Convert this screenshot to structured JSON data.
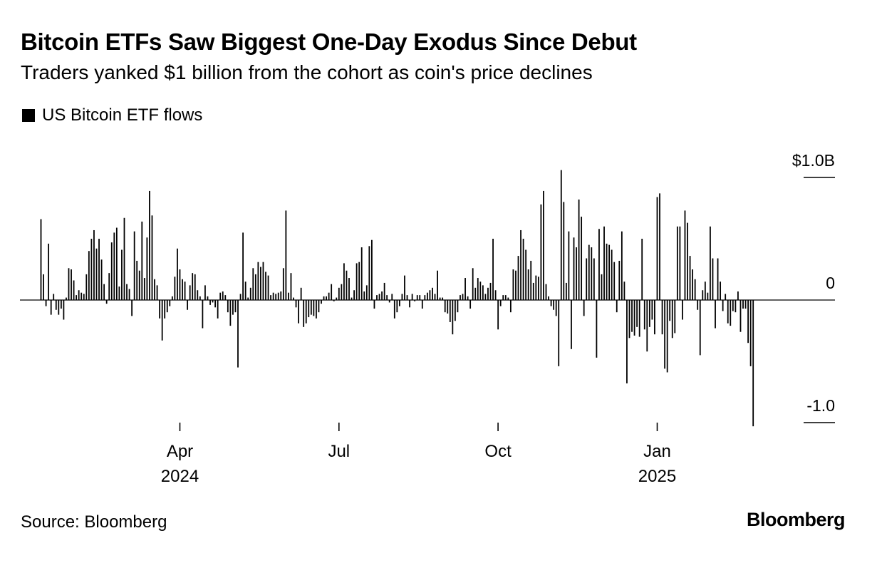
{
  "title": "Bitcoin ETFs Saw Biggest One-Day Exodus Since Debut",
  "subtitle": "Traders yanked $1 billion from the cohort as coin's price declines",
  "source": "Source: Bloomberg",
  "logo_text": "Bloomberg",
  "colors": {
    "bars": "#000000",
    "baseline": "#000000",
    "text": "#000000"
  },
  "chart_data": {
    "type": "bar",
    "title": "Bitcoin ETFs Saw Biggest One-Day Exodus Since Debut",
    "subtitle": "Traders yanked $1 billion from the cohort as coin's price declines",
    "legend": [
      "US Bitcoin ETF flows"
    ],
    "unit": "billion USD",
    "ylim": [
      -1.05,
      1.35
    ],
    "y_ticks": [
      {
        "value": 1.0,
        "label": "$1.0B"
      },
      {
        "value": 0,
        "label": "0"
      },
      {
        "value": -1.0,
        "label": "-1.0"
      }
    ],
    "x_ticks": [
      {
        "month": "Apr",
        "year": "2024",
        "day_index": 55
      },
      {
        "month": "Jul",
        "year": "",
        "day_index": 118
      },
      {
        "month": "Oct",
        "year": "",
        "day_index": 181
      },
      {
        "month": "Jan",
        "year": "2025",
        "day_index": 244
      }
    ],
    "values": [
      0.66,
      0.21,
      -0.05,
      0.46,
      -0.12,
      0.05,
      -0.08,
      -0.12,
      -0.07,
      -0.16,
      0.02,
      0.26,
      0.25,
      0.16,
      0.04,
      0.08,
      0.06,
      0.05,
      0.21,
      0.4,
      0.5,
      0.57,
      0.42,
      0.5,
      0.33,
      0.13,
      -0.03,
      0.22,
      0.47,
      0.55,
      0.59,
      0.11,
      0.41,
      0.67,
      0.13,
      0.09,
      -0.13,
      0.56,
      0.32,
      0.24,
      0.64,
      0.18,
      0.51,
      0.89,
      0.69,
      0.17,
      0.12,
      -0.15,
      -0.33,
      -0.15,
      -0.1,
      -0.05,
      0.03,
      0.19,
      0.42,
      0.25,
      0.17,
      0.15,
      -0.08,
      0.12,
      0.22,
      0.21,
      0.08,
      0.03,
      -0.23,
      0.12,
      0.03,
      -0.04,
      -0.02,
      -0.06,
      -0.15,
      0.06,
      0.07,
      0.04,
      -0.1,
      -0.21,
      -0.12,
      -0.1,
      -0.55,
      0.05,
      0.55,
      0.15,
      0.02,
      0.1,
      0.26,
      0.21,
      0.31,
      0.27,
      0.31,
      0.23,
      0.2,
      0.04,
      0.06,
      0.05,
      0.06,
      0.07,
      0.26,
      0.73,
      0.06,
      0.22,
      0.02,
      -0.06,
      -0.19,
      0.1,
      -0.22,
      -0.19,
      -0.14,
      -0.12,
      -0.13,
      -0.15,
      -0.1,
      -0.03,
      0.03,
      0.03,
      0.06,
      0.13,
      -0.01,
      0.02,
      0.1,
      0.13,
      0.3,
      0.24,
      0.18,
      0.02,
      0.08,
      0.3,
      0.31,
      0.43,
      0.07,
      0.12,
      0.44,
      0.49,
      -0.07,
      0.04,
      0.05,
      0.07,
      0.14,
      0.04,
      -0.02,
      0.05,
      -0.15,
      -0.1,
      -0.05,
      0.05,
      0.2,
      0.04,
      -0.06,
      0.05,
      -0.01,
      0.04,
      0.04,
      -0.07,
      0.04,
      0.06,
      0.08,
      0.1,
      0.05,
      0.24,
      0.02,
      0.02,
      -0.1,
      -0.11,
      -0.18,
      -0.28,
      -0.17,
      -0.1,
      0.04,
      0.05,
      0.18,
      0.03,
      -0.07,
      0.26,
      0.1,
      0.18,
      0.15,
      0.12,
      0.05,
      0.1,
      0.14,
      0.5,
      0.08,
      -0.24,
      -0.05,
      0.04,
      0.04,
      0.02,
      -0.1,
      0.25,
      0.24,
      0.36,
      0.57,
      0.5,
      0.41,
      0.25,
      0.32,
      0.14,
      0.2,
      0.19,
      0.78,
      0.89,
      0.13,
      0.03,
      -0.05,
      -0.08,
      -0.13,
      -0.54,
      1.06,
      0.8,
      0.14,
      0.56,
      -0.4,
      0.51,
      0.43,
      0.82,
      0.68,
      -0.13,
      0.34,
      0.45,
      0.43,
      0.34,
      -0.47,
      0.58,
      0.21,
      0.6,
      0.46,
      0.45,
      0.41,
      0.31,
      -0.1,
      0.32,
      0.56,
      0.15,
      -0.68,
      -0.31,
      -0.26,
      -0.29,
      -0.22,
      -0.3,
      0.5,
      -0.24,
      -0.42,
      -0.22,
      -0.16,
      -0.28,
      0.84,
      0.87,
      -0.28,
      -0.56,
      -0.59,
      -0.17,
      -0.31,
      -0.27,
      0.6,
      0.6,
      -0.16,
      0.73,
      0.63,
      0.36,
      0.25,
      0.17,
      -0.08,
      -0.45,
      0.08,
      0.15,
      0.06,
      0.6,
      0.34,
      -0.23,
      0.34,
      0.15,
      -0.09,
      0.05,
      -0.19,
      -0.21,
      -0.09,
      -0.1,
      0.07,
      -0.26,
      -0.07,
      -0.07,
      -0.35,
      -0.54,
      -1.03
    ]
  }
}
